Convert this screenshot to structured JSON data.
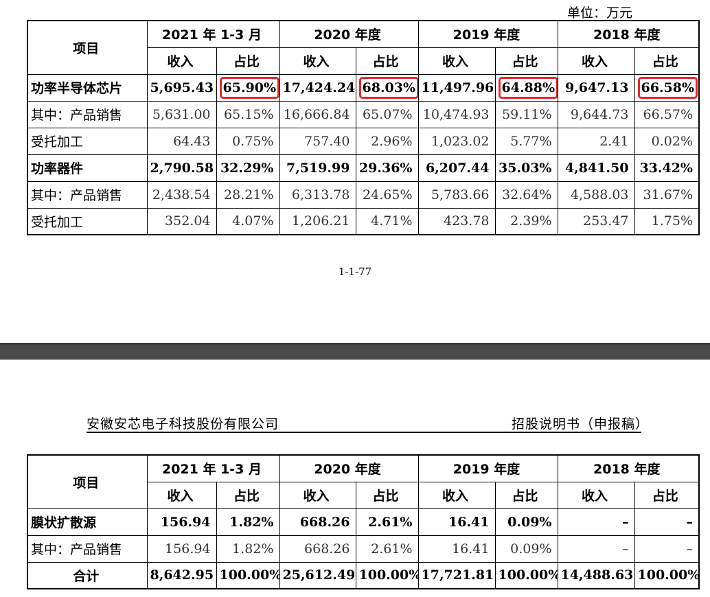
{
  "unit_label": "单位：万元",
  "page_number": "1-1-77",
  "doc_header": {
    "company": "安徽安芯电子科技股份有限公司",
    "doc_type": "招股说明书（申报稿）"
  },
  "columns": {
    "item": "项目",
    "periods": [
      "2021 年 1-3 月",
      "2020 年度",
      "2019 年度",
      "2018 年度"
    ],
    "revenue": "收入",
    "share": "占比"
  },
  "table1": [
    {
      "label": "功率半导体芯片",
      "style": "bold",
      "values": [
        "5,695.43",
        "65.90%",
        "17,424.24",
        "68.03%",
        "11,497.96",
        "64.88%",
        "9,647.13",
        "66.58%"
      ],
      "highlight_share": true
    },
    {
      "label": "其中：产品销售",
      "style": "normal",
      "values": [
        "5,631.00",
        "65.15%",
        "16,666.84",
        "65.07%",
        "10,474.93",
        "59.11%",
        "9,644.73",
        "66.57%"
      ]
    },
    {
      "label": "受托加工",
      "style": "indent",
      "values": [
        "64.43",
        "0.75%",
        "757.40",
        "2.96%",
        "1,023.02",
        "5.77%",
        "2.41",
        "0.02%"
      ]
    },
    {
      "label": "功率器件",
      "style": "bold",
      "values": [
        "2,790.58",
        "32.29%",
        "7,519.99",
        "29.36%",
        "6,207.44",
        "35.03%",
        "4,841.50",
        "33.42%"
      ]
    },
    {
      "label": "其中：产品销售",
      "style": "normal",
      "values": [
        "2,438.54",
        "28.21%",
        "6,313.78",
        "24.65%",
        "5,783.66",
        "32.64%",
        "4,588.03",
        "31.67%"
      ]
    },
    {
      "label": "受托加工",
      "style": "indent",
      "values": [
        "352.04",
        "4.07%",
        "1,206.21",
        "4.71%",
        "423.78",
        "2.39%",
        "253.47",
        "1.75%"
      ]
    }
  ],
  "table2": [
    {
      "label": "膜状扩散源",
      "style": "bold",
      "values": [
        "156.94",
        "1.82%",
        "668.26",
        "2.61%",
        "16.41",
        "0.09%",
        "–",
        "–"
      ]
    },
    {
      "label": "其中：产品销售",
      "style": "normal",
      "values": [
        "156.94",
        "1.82%",
        "668.26",
        "2.61%",
        "16.41",
        "0.09%",
        "–",
        "–"
      ]
    },
    {
      "label": "合计",
      "style": "total",
      "values": [
        "8,642.95",
        "100.00%",
        "25,612.49",
        "100.00%",
        "17,721.81",
        "100.00%",
        "14,488.63",
        "100.00%"
      ]
    }
  ],
  "colors": {
    "highlight": "#e8262b",
    "divider": "#4a4a4a"
  }
}
